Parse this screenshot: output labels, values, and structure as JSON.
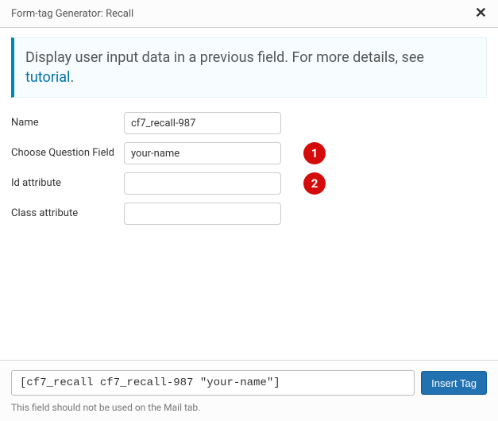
{
  "titlebar": {
    "title": "Form-tag Generator: Recall",
    "close_label": "✕"
  },
  "banner": {
    "text_before": "Display user input data in a previous field. For more details, see ",
    "link_text": "tutorial",
    "text_after": "."
  },
  "form": {
    "name": {
      "label": "Name",
      "value": "cf7_recall-987"
    },
    "question": {
      "label": "Choose Question Field",
      "value": "your-name"
    },
    "id_attr": {
      "label": "Id attribute",
      "value": ""
    },
    "class_attr": {
      "label": "Class attribute",
      "value": ""
    }
  },
  "callouts": {
    "c1": "1",
    "c2": "2"
  },
  "footer": {
    "shortcode": "[cf7_recall cf7_recall-987 \"your-name\"]",
    "insert_label": "Insert Tag",
    "note": "This field should not be used on the Mail tab."
  },
  "colors": {
    "banner_border": "#0085ba",
    "link": "#0073aa",
    "callout_bg": "#d40b0b",
    "button_bg": "#2271b1"
  }
}
